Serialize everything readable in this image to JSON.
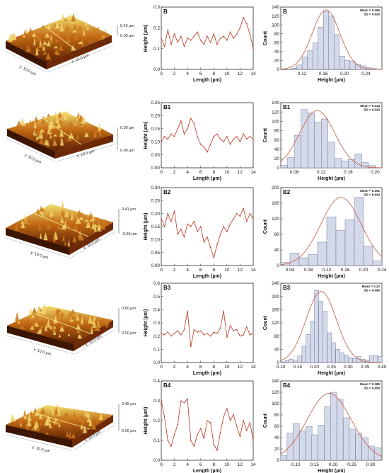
{
  "colors": {
    "line": "#b8341e",
    "fit": "#c8553d",
    "bar_fill": "#dde2f0",
    "bar_edge": "#5a6285"
  },
  "afm_images": [
    {
      "scale_top": "0.43 µm",
      "scale_bottom": "0.00 µm",
      "axis_y": "y: 10.0 µm",
      "axis_x": "x: 10.0 µm"
    },
    {
      "scale_top": "0.30 µm",
      "scale_bottom": "0.00 µm",
      "axis_y": "y: 10.0 µm",
      "axis_x": "x: 10.0 µm"
    },
    {
      "scale_top": "0.41 µm",
      "scale_bottom": "-0.00 µm",
      "axis_y": "y: 10.0 µm",
      "axis_x": "x: 10.0 µm"
    },
    {
      "scale_top": "0.60 µm",
      "scale_bottom": "0.00 µm",
      "axis_y": "x: 10.0 µm",
      "axis_x": "x: 10.0 µm"
    },
    {
      "scale_top": "0.49 µm",
      "scale_bottom": "0.00 µm",
      "axis_y": "y: 10.0 µm",
      "axis_x": "x: 10.0 µm"
    }
  ],
  "chart_data": [
    {
      "type": "line",
      "panel": "B",
      "xlabel": "Length (µm)",
      "ylabel": "Height (µm)",
      "xlim": [
        0,
        14
      ],
      "ylim": [
        0,
        0.3
      ],
      "xticks": [
        "0",
        "2",
        "4",
        "6",
        "8",
        "10",
        "12",
        "14"
      ],
      "yticks": [
        "0.0",
        "0.1",
        "0.2",
        "0.3"
      ],
      "x": [
        0,
        0.5,
        1,
        1.5,
        2,
        2.5,
        3,
        3.5,
        4,
        4.5,
        5,
        5.5,
        6,
        6.5,
        7,
        7.5,
        8,
        8.5,
        9,
        9.5,
        10,
        10.5,
        11,
        11.5,
        12,
        12.5,
        13,
        13.5,
        14
      ],
      "y": [
        0.15,
        0.11,
        0.19,
        0.12,
        0.17,
        0.13,
        0.16,
        0.11,
        0.15,
        0.14,
        0.16,
        0.18,
        0.14,
        0.12,
        0.16,
        0.13,
        0.17,
        0.12,
        0.15,
        0.16,
        0.14,
        0.18,
        0.15,
        0.17,
        0.2,
        0.25,
        0.22,
        0.17,
        0.1
      ]
    },
    {
      "type": "bar",
      "panel": "B",
      "xlabel": "Height (µm)",
      "ylabel": "Count",
      "xlim": [
        0.08,
        0.27
      ],
      "ylim": [
        0,
        140
      ],
      "xticks": [
        0.12,
        0.16,
        0.2,
        0.24
      ],
      "yticks": [
        0,
        20,
        40,
        60,
        80,
        100,
        120,
        140
      ],
      "bin_width": 0.01,
      "x": [
        0.105,
        0.115,
        0.125,
        0.135,
        0.145,
        0.155,
        0.165,
        0.175,
        0.185,
        0.195,
        0.205,
        0.215,
        0.225,
        0.235,
        0.245,
        0.255
      ],
      "values": [
        3,
        10,
        28,
        42,
        60,
        95,
        130,
        120,
        78,
        30,
        20,
        18,
        12,
        8,
        4,
        2
      ],
      "fit": {
        "mean": 0.165,
        "sd": 0.026,
        "peak": 134
      },
      "stats": [
        "Mean = 0.165",
        "SD = 0.026"
      ]
    },
    {
      "type": "line",
      "panel": "B1",
      "xlabel": "Length (µm)",
      "ylabel": "Height (µm)",
      "xlim": [
        0,
        14
      ],
      "ylim": [
        0,
        0.25
      ],
      "xticks": [
        "0",
        "2",
        "4",
        "6",
        "8",
        "10",
        "12",
        "14"
      ],
      "yticks": [
        "0.00",
        "0.05",
        "0.10",
        "0.15",
        "0.20",
        "0.25"
      ],
      "x": [
        0,
        0.5,
        1,
        1.5,
        2,
        2.5,
        3,
        3.5,
        4,
        4.5,
        5,
        5.5,
        6,
        6.5,
        7,
        7.5,
        8,
        8.5,
        9,
        9.5,
        10,
        10.5,
        11,
        11.5,
        12,
        12.5,
        13,
        13.5,
        14
      ],
      "y": [
        0.1,
        0.12,
        0.11,
        0.13,
        0.12,
        0.15,
        0.18,
        0.13,
        0.15,
        0.19,
        0.17,
        0.12,
        0.09,
        0.08,
        0.06,
        0.09,
        0.12,
        0.13,
        0.11,
        0.1,
        0.12,
        0.09,
        0.11,
        0.12,
        0.1,
        0.13,
        0.11,
        0.12,
        0.11
      ]
    },
    {
      "type": "bar",
      "panel": "B1",
      "xlabel": "Height (µm)",
      "ylabel": "Count",
      "xlim": [
        0.06,
        0.21
      ],
      "ylim": [
        0,
        140
      ],
      "xticks": [
        0.08,
        0.12,
        0.16,
        0.2
      ],
      "yticks": [
        0,
        20,
        40,
        60,
        80,
        100,
        120,
        140
      ],
      "bin_width": 0.01,
      "x": [
        0.065,
        0.075,
        0.085,
        0.095,
        0.105,
        0.115,
        0.125,
        0.135,
        0.145,
        0.155,
        0.165,
        0.175,
        0.185,
        0.195
      ],
      "values": [
        5,
        22,
        70,
        125,
        118,
        98,
        105,
        55,
        20,
        15,
        18,
        30,
        12,
        5
      ],
      "fit": {
        "mean": 0.114,
        "sd": 0.026,
        "peak": 123
      },
      "stats": [
        "Mean = 0.114",
        "SD = 0.026"
      ]
    },
    {
      "type": "line",
      "panel": "B2",
      "xlabel": "Length (µm)",
      "ylabel": "Height (µm)",
      "xlim": [
        0,
        14
      ],
      "ylim": [
        0,
        0.3
      ],
      "xticks": [
        "0",
        "2",
        "4",
        "6",
        "8",
        "10",
        "12",
        "14"
      ],
      "yticks": [
        "0.00",
        "0.05",
        "0.10",
        "0.15",
        "0.20",
        "0.25",
        "0.30"
      ],
      "x": [
        0,
        0.5,
        1,
        1.5,
        2,
        2.5,
        3,
        3.5,
        4,
        4.5,
        5,
        5.5,
        6,
        6.5,
        7,
        7.5,
        8,
        8.5,
        9,
        9.5,
        10,
        10.5,
        11,
        11.5,
        12,
        12.5,
        13,
        13.5,
        14
      ],
      "y": [
        0.18,
        0.15,
        0.2,
        0.17,
        0.21,
        0.12,
        0.14,
        0.11,
        0.16,
        0.15,
        0.17,
        0.13,
        0.15,
        0.09,
        0.11,
        0.07,
        0.03,
        0.08,
        0.12,
        0.15,
        0.13,
        0.16,
        0.18,
        0.2,
        0.19,
        0.22,
        0.17,
        0.2,
        0.18
      ]
    },
    {
      "type": "bar",
      "panel": "B2",
      "xlabel": "Height (µm)",
      "ylabel": "Count",
      "xlim": [
        0.02,
        0.24
      ],
      "ylim": [
        0,
        200
      ],
      "xticks": [
        0.04,
        0.08,
        0.12,
        0.16,
        0.2,
        0.24
      ],
      "yticks": [
        0,
        40,
        80,
        120,
        160,
        200
      ],
      "bin_width": 0.02,
      "x": [
        0.03,
        0.05,
        0.07,
        0.09,
        0.11,
        0.13,
        0.15,
        0.17,
        0.19,
        0.21,
        0.23
      ],
      "values": [
        8,
        32,
        20,
        28,
        60,
        125,
        90,
        118,
        175,
        50,
        12
      ],
      "fit": {
        "mean": 0.151,
        "sd": 0.044,
        "peak": 175
      },
      "stats": [
        "Mean = 0.151",
        "SD = 0.044"
      ]
    },
    {
      "type": "line",
      "panel": "B3",
      "xlabel": "Length (µm)",
      "ylabel": "Height (µm)",
      "xlim": [
        0,
        14
      ],
      "ylim": [
        0,
        0.6
      ],
      "xticks": [
        "0",
        "2",
        "4",
        "6",
        "8",
        "10",
        "12",
        "14"
      ],
      "yticks": [
        "0.0",
        "0.1",
        "0.2",
        "0.3",
        "0.4",
        "0.5",
        "0.6"
      ],
      "x": [
        0,
        0.5,
        1,
        1.5,
        2,
        2.5,
        3,
        3.5,
        4,
        4.5,
        5,
        5.5,
        6,
        6.5,
        7,
        7.5,
        8,
        8.5,
        9,
        9.5,
        10,
        10.5,
        11,
        11.5,
        12,
        12.5,
        13,
        13.5,
        14
      ],
      "y": [
        0.22,
        0.21,
        0.23,
        0.2,
        0.22,
        0.24,
        0.21,
        0.25,
        0.39,
        0.12,
        0.25,
        0.23,
        0.24,
        0.21,
        0.22,
        0.2,
        0.23,
        0.22,
        0.26,
        0.39,
        0.19,
        0.28,
        0.24,
        0.25,
        0.2,
        0.21,
        0.27,
        0.21,
        0.22
      ]
    },
    {
      "type": "bar",
      "panel": "B3",
      "xlabel": "Height (µm)",
      "ylabel": "Count",
      "xlim": [
        0.1,
        0.4
      ],
      "ylim": [
        0,
        240
      ],
      "xticks": [
        0.1,
        0.15,
        0.2,
        0.25,
        0.3,
        0.35,
        0.4
      ],
      "yticks": [
        0,
        40,
        80,
        120,
        160,
        200,
        240
      ],
      "bin_width": 0.0125,
      "x": [
        0.106,
        0.119,
        0.131,
        0.144,
        0.156,
        0.169,
        0.181,
        0.194,
        0.206,
        0.219,
        0.231,
        0.244,
        0.256,
        0.269,
        0.281,
        0.294,
        0.306,
        0.319,
        0.331,
        0.344,
        0.356,
        0.369,
        0.381,
        0.394
      ],
      "values": [
        2,
        6,
        10,
        5,
        20,
        50,
        85,
        125,
        218,
        185,
        155,
        90,
        60,
        40,
        30,
        22,
        15,
        12,
        18,
        10,
        8,
        20,
        22,
        18
      ],
      "fit": {
        "mean": 0.22,
        "sd": 0.045,
        "peak": 215
      },
      "stats": [
        "Mean = 0.22",
        "SD = 0.045"
      ]
    },
    {
      "type": "line",
      "panel": "B4",
      "xlabel": "Length (µm)",
      "ylabel": "Height (µm)",
      "xlim": [
        0,
        14
      ],
      "ylim": [
        0,
        0.4
      ],
      "xticks": [
        "0",
        "2",
        "4",
        "6",
        "8",
        "10",
        "12",
        "14"
      ],
      "yticks": [
        "0.0",
        "0.1",
        "0.2",
        "0.3",
        "0.4"
      ],
      "x": [
        0,
        0.5,
        1,
        1.5,
        2,
        2.5,
        3,
        3.5,
        4,
        4.5,
        5,
        5.5,
        6,
        6.5,
        7,
        7.5,
        8,
        8.5,
        9,
        9.5,
        10,
        10.5,
        11,
        11.5,
        12,
        12.5,
        13,
        13.5,
        14
      ],
      "y": [
        0.3,
        0.22,
        0.1,
        0.07,
        0.13,
        0.18,
        0.3,
        0.29,
        0.31,
        0.1,
        0.07,
        0.13,
        0.16,
        0.11,
        0.2,
        0.19,
        0.08,
        0.05,
        0.14,
        0.22,
        0.26,
        0.2,
        0.23,
        0.17,
        0.12,
        0.2,
        0.15,
        0.19,
        0.1
      ]
    },
    {
      "type": "bar",
      "panel": "B4",
      "xlabel": "Height (µm)",
      "ylabel": "Count",
      "xlim": [
        0.06,
        0.33
      ],
      "ylim": [
        0,
        140
      ],
      "xticks": [
        0.1,
        0.15,
        0.2,
        0.25,
        0.3
      ],
      "yticks": [
        0,
        20,
        40,
        60,
        80,
        100,
        120,
        140
      ],
      "bin_width": 0.0166,
      "x": [
        0.068,
        0.085,
        0.101,
        0.118,
        0.135,
        0.151,
        0.168,
        0.185,
        0.201,
        0.218,
        0.235,
        0.251,
        0.268,
        0.285,
        0.301,
        0.318
      ],
      "values": [
        8,
        48,
        65,
        52,
        60,
        45,
        62,
        95,
        120,
        108,
        75,
        55,
        48,
        40,
        25,
        22
      ],
      "fit": {
        "mean": 0.189,
        "sd": 0.059,
        "peak": 118
      },
      "stats": [
        "Mean = 0.189",
        "SD = 0.059"
      ]
    }
  ]
}
